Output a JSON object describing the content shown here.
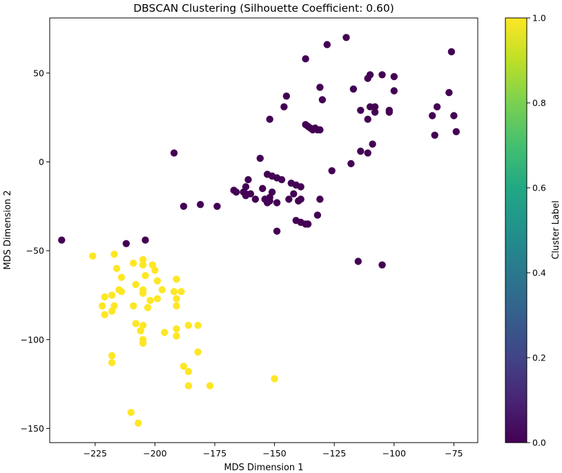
{
  "chart_data": {
    "type": "scatter",
    "title": "DBSCAN Clustering (Silhouette Coefficient: 0.60)",
    "xlabel": "MDS Dimension 1",
    "ylabel": "MDS Dimension 2",
    "xlim": [
      -244,
      -65
    ],
    "ylim": [
      -158,
      81
    ],
    "xticks": [
      -225,
      -200,
      -175,
      -150,
      -125,
      -100,
      -75
    ],
    "yticks": [
      -150,
      -100,
      -50,
      0,
      50
    ],
    "xtick_labels": [
      "−225",
      "−200",
      "−175",
      "−150",
      "−125",
      "−100",
      "−75"
    ],
    "ytick_labels": [
      "−150",
      "−100",
      "−50",
      "0",
      "50"
    ],
    "grid": false,
    "colorbar": {
      "label": "Cluster Label",
      "range": [
        0,
        1
      ],
      "ticks": [
        0.0,
        0.2,
        0.4,
        0.6,
        0.8,
        1.0
      ],
      "tick_labels": [
        "0.0",
        "0.2",
        "0.4",
        "0.6",
        "0.8",
        "1.0"
      ],
      "colormap": "viridis"
    },
    "series": [
      {
        "cluster": 0,
        "color": "#440154",
        "points": [
          [
            -120,
            70
          ],
          [
            -128,
            66
          ],
          [
            -137,
            58
          ],
          [
            -76,
            62
          ],
          [
            -110,
            49
          ],
          [
            -105,
            49
          ],
          [
            -100,
            48
          ],
          [
            -111,
            47
          ],
          [
            -77,
            39
          ],
          [
            -100,
            40
          ],
          [
            -117,
            41
          ],
          [
            -131,
            42
          ],
          [
            -145,
            37
          ],
          [
            -146,
            31
          ],
          [
            -130,
            35
          ],
          [
            -110,
            31
          ],
          [
            -108,
            31
          ],
          [
            -102,
            29
          ],
          [
            -102,
            28
          ],
          [
            -114,
            29
          ],
          [
            -108,
            28
          ],
          [
            -82,
            31
          ],
          [
            -84,
            26
          ],
          [
            -75,
            26
          ],
          [
            -111,
            24
          ],
          [
            -152,
            24
          ],
          [
            -137,
            21
          ],
          [
            -136,
            20
          ],
          [
            -135,
            19
          ],
          [
            -134,
            18
          ],
          [
            -133,
            19
          ],
          [
            -132,
            18
          ],
          [
            -131,
            18
          ],
          [
            -74,
            17
          ],
          [
            -83,
            15
          ],
          [
            -109,
            10
          ],
          [
            -114,
            6
          ],
          [
            -111,
            5
          ],
          [
            -192,
            5
          ],
          [
            -156,
            2
          ],
          [
            -118,
            -1
          ],
          [
            -126,
            -5
          ],
          [
            -153,
            -7
          ],
          [
            -151,
            -8
          ],
          [
            -149,
            -9
          ],
          [
            -147,
            -10
          ],
          [
            -161,
            -10
          ],
          [
            -141,
            -13
          ],
          [
            -143,
            -12
          ],
          [
            -162,
            -14
          ],
          [
            -155,
            -15
          ],
          [
            -139,
            -14
          ],
          [
            -167,
            -16
          ],
          [
            -166,
            -17
          ],
          [
            -163,
            -17
          ],
          [
            -162,
            -18
          ],
          [
            -160,
            -18
          ],
          [
            -151,
            -17
          ],
          [
            -162,
            -19
          ],
          [
            -152,
            -20
          ],
          [
            -158,
            -21
          ],
          [
            -142,
            -18
          ],
          [
            -144,
            -21
          ],
          [
            -139,
            -21
          ],
          [
            -154,
            -21
          ],
          [
            -153,
            -23
          ],
          [
            -152,
            -22
          ],
          [
            -149,
            -23
          ],
          [
            -140,
            -22
          ],
          [
            -131,
            -21
          ],
          [
            -181,
            -24
          ],
          [
            -174,
            -25
          ],
          [
            -188,
            -25
          ],
          [
            -132,
            -30
          ],
          [
            -141,
            -33
          ],
          [
            -139,
            -34
          ],
          [
            -137,
            -35
          ],
          [
            -136,
            -35
          ],
          [
            -149,
            -39
          ],
          [
            -204,
            -44
          ],
          [
            -212,
            -46
          ],
          [
            -239,
            -44
          ],
          [
            -115,
            -56
          ],
          [
            -105,
            -58
          ]
        ]
      },
      {
        "cluster": 1,
        "color": "#fde725",
        "points": [
          [
            -226,
            -53
          ],
          [
            -217,
            -52
          ],
          [
            -205,
            -55
          ],
          [
            -205,
            -58
          ],
          [
            -209,
            -57
          ],
          [
            -201,
            -58
          ],
          [
            -216,
            -60
          ],
          [
            -200,
            -61
          ],
          [
            -204,
            -64
          ],
          [
            -214,
            -65
          ],
          [
            -191,
            -66
          ],
          [
            -199,
            -67
          ],
          [
            -208,
            -69
          ],
          [
            -215,
            -72
          ],
          [
            -205,
            -72
          ],
          [
            -214,
            -73
          ],
          [
            -197,
            -72
          ],
          [
            -192,
            -73
          ],
          [
            -189,
            -73
          ],
          [
            -205,
            -74
          ],
          [
            -218,
            -75
          ],
          [
            -221,
            -76
          ],
          [
            -191,
            -77
          ],
          [
            -199,
            -77
          ],
          [
            -202,
            -78
          ],
          [
            -217,
            -81
          ],
          [
            -222,
            -81
          ],
          [
            -209,
            -81
          ],
          [
            -191,
            -81
          ],
          [
            -203,
            -82
          ],
          [
            -218,
            -84
          ],
          [
            -221,
            -86
          ],
          [
            -208,
            -91
          ],
          [
            -205,
            -92
          ],
          [
            -186,
            -92
          ],
          [
            -182,
            -92
          ],
          [
            -191,
            -94
          ],
          [
            -206,
            -95
          ],
          [
            -196,
            -96
          ],
          [
            -191,
            -98
          ],
          [
            -205,
            -100
          ],
          [
            -205,
            -102
          ],
          [
            -182,
            -107
          ],
          [
            -218,
            -109
          ],
          [
            -218,
            -113
          ],
          [
            -188,
            -115
          ],
          [
            -186,
            -118
          ],
          [
            -150,
            -122
          ],
          [
            -186,
            -126
          ],
          [
            -177,
            -126
          ],
          [
            -210,
            -141
          ],
          [
            -207,
            -147
          ]
        ]
      }
    ]
  }
}
